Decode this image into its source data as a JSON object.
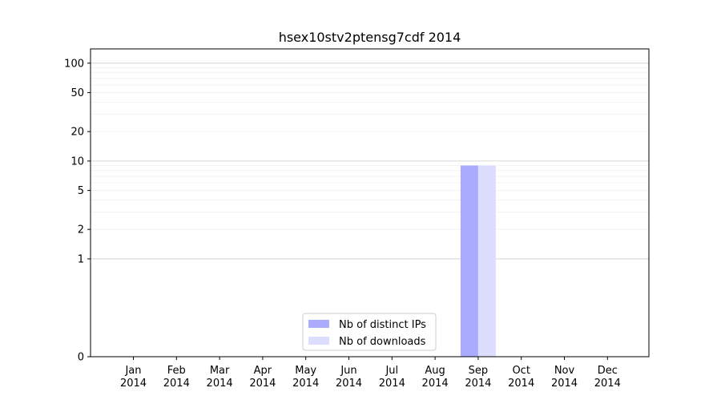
{
  "chart_data": {
    "type": "bar",
    "title": "hsex10stv2ptensg7cdf 2014",
    "xlabel": "",
    "ylabel": "",
    "yscale": "symlog",
    "ylim": [
      0,
      140
    ],
    "categories": [
      [
        "Jan",
        "2014"
      ],
      [
        "Feb",
        "2014"
      ],
      [
        "Mar",
        "2014"
      ],
      [
        "Apr",
        "2014"
      ],
      [
        "May",
        "2014"
      ],
      [
        "Jun",
        "2014"
      ],
      [
        "Jul",
        "2014"
      ],
      [
        "Aug",
        "2014"
      ],
      [
        "Sep",
        "2014"
      ],
      [
        "Oct",
        "2014"
      ],
      [
        "Nov",
        "2014"
      ],
      [
        "Dec",
        "2014"
      ]
    ],
    "y_ticks": [
      0,
      1,
      2,
      5,
      10,
      20,
      50,
      100
    ],
    "series": [
      {
        "name": "Nb of distinct IPs",
        "color": "#aaaaff",
        "values": [
          0,
          0,
          0,
          0,
          0,
          0,
          0,
          0,
          9,
          0,
          0,
          0
        ]
      },
      {
        "name": "Nb of downloads",
        "color": "#ddddff",
        "values": [
          0,
          0,
          0,
          0,
          0,
          0,
          0,
          0,
          9,
          0,
          0,
          0
        ]
      }
    ],
    "legend_position": "lower-center",
    "grid": true
  }
}
